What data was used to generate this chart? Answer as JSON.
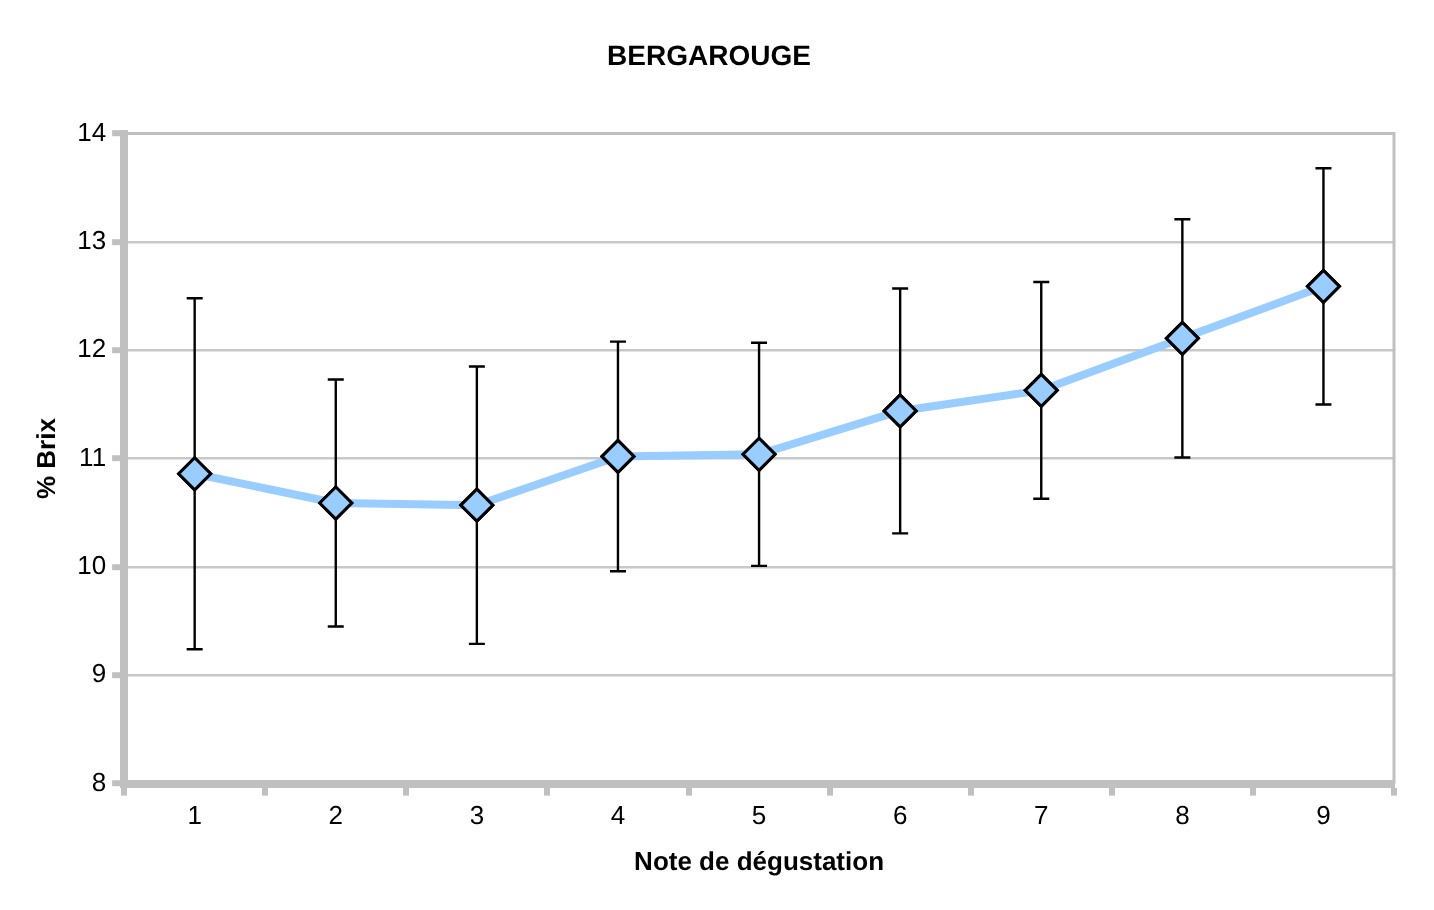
{
  "chart_data": {
    "type": "line",
    "title": "BERGAROUGE",
    "xlabel": "Note de dégustation",
    "ylabel": "% Brix",
    "categories": [
      "1",
      "2",
      "3",
      "4",
      "5",
      "6",
      "7",
      "8",
      "9"
    ],
    "series": [
      {
        "color": "#99ccff",
        "values": [
          10.86,
          10.59,
          10.57,
          11.02,
          11.04,
          11.44,
          11.63,
          12.11,
          12.59
        ],
        "errors": [
          1.62,
          1.14,
          1.28,
          1.06,
          1.03,
          1.13,
          1.0,
          1.1,
          1.09
        ]
      }
    ],
    "ylim": [
      8,
      14
    ],
    "yticks": [
      8,
      9,
      10,
      11,
      12,
      13,
      14
    ],
    "grid": "y",
    "marker": "diamond",
    "legend": false
  }
}
